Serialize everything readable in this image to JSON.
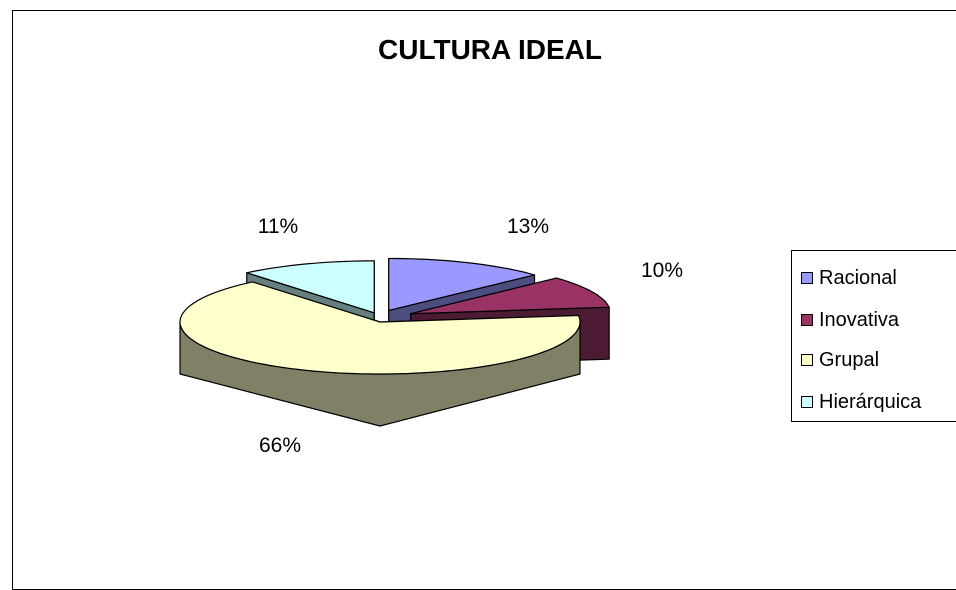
{
  "chart_data": {
    "type": "pie",
    "title": "CULTURA IDEAL",
    "three_d": true,
    "exploded": true,
    "slices": [
      {
        "label": "Racional",
        "value": 13,
        "value_label": "13%",
        "color": "#9999FF",
        "side_color": "#4D4D80"
      },
      {
        "label": "Inovativa",
        "value": 10,
        "value_label": "10%",
        "color": "#993366",
        "side_color": "#4D1A33"
      },
      {
        "label": "Grupal",
        "value": 66,
        "value_label": "66%",
        "color": "#FFFFCC",
        "side_color": "#808066"
      },
      {
        "label": "Hierárquica",
        "value": 11,
        "value_label": "11%",
        "color": "#CCFFFF",
        "side_color": "#668080"
      }
    ],
    "legend_position": "right"
  }
}
